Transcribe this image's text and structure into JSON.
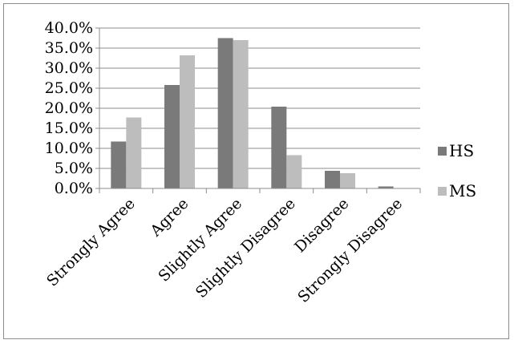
{
  "chart_data": {
    "type": "bar",
    "title": "",
    "xlabel": "",
    "ylabel": "",
    "categories": [
      "Strongly Agree",
      "Agree",
      "Slightly Agree",
      "Slightly Disagree",
      "Disagree",
      "Strongly Disagree"
    ],
    "series": [
      {
        "name": "HS",
        "color": "#7a7a7a",
        "values": [
          11.7,
          25.8,
          37.5,
          20.4,
          4.4,
          0.5
        ]
      },
      {
        "name": "MS",
        "color": "#bdbdbd",
        "values": [
          17.7,
          33.2,
          37.0,
          8.3,
          3.8,
          0.0
        ]
      }
    ],
    "ylim": [
      0,
      40
    ],
    "yticks": [
      0,
      5,
      10,
      15,
      20,
      25,
      30,
      35,
      40
    ],
    "ytick_labels": [
      "0.0%",
      "5.0%",
      "10.0%",
      "15.0%",
      "20.0%",
      "25.0%",
      "30.0%",
      "35.0%",
      "40.0%"
    ],
    "grid": true,
    "legend_position": "right"
  }
}
